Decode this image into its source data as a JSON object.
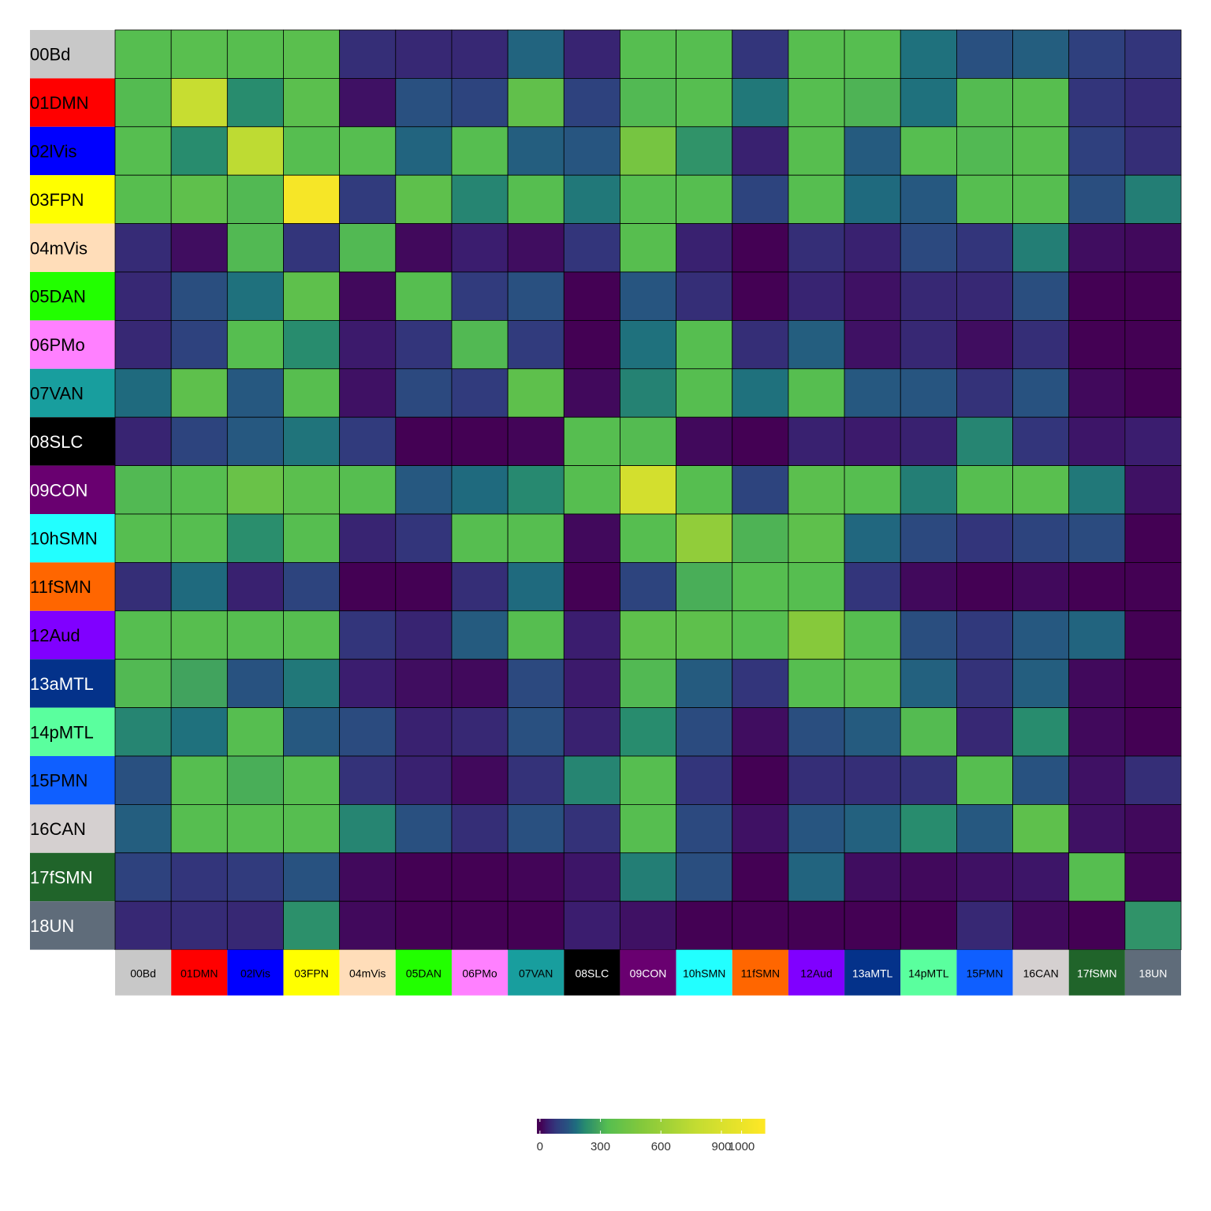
{
  "chart_data": {
    "type": "heatmap",
    "title": "",
    "xlabel": "",
    "ylabel": "",
    "row_labels": [
      "00Bd",
      "01DMN",
      "02lVis",
      "03FPN",
      "04mVis",
      "05DAN",
      "06PMo",
      "07VAN",
      "08SLC",
      "09CON",
      "10hSMN",
      "11fSMN",
      "12Aud",
      "13aMTL",
      "14pMTL",
      "15PMN",
      "16CAN",
      "17fSMN",
      "18UN"
    ],
    "col_labels": [
      "00Bd",
      "01DMN",
      "02lVis",
      "03FPN",
      "04mVis",
      "05DAN",
      "06PMo",
      "07VAN",
      "08SLC",
      "09CON",
      "10hSMN",
      "11fSMN",
      "12Aud",
      "13aMTL",
      "14pMTL",
      "15PMN",
      "16CAN",
      "17fSMN",
      "18UN"
    ],
    "label_colors": [
      "#C8C8C8",
      "#FF0000",
      "#0000FF",
      "#FFFF00",
      "#FFDDB9",
      "#22FF00",
      "#FF80FF",
      "#189E9E",
      "#000000",
      "#690070",
      "#22FFFF",
      "#FF6600",
      "#8000FF",
      "#04328A",
      "#5AFF9E",
      "#0F5FFF",
      "#D5D0D0",
      "#20642A",
      "#5F6C7A"
    ],
    "label_text_colors": [
      "#000000",
      "#000000",
      "#000000",
      "#000000",
      "#000000",
      "#000000",
      "#000000",
      "#000000",
      "#ffffff",
      "#ffffff",
      "#000000",
      "#000000",
      "#000000",
      "#ffffff",
      "#000000",
      "#000000",
      "#000000",
      "#ffffff",
      "#ffffff"
    ],
    "values": [
      [
        330,
        340,
        335,
        345,
        60,
        50,
        50,
        160,
        45,
        330,
        330,
        70,
        335,
        330,
        180,
        125,
        150,
        90,
        70
      ],
      [
        325,
        790,
        220,
        350,
        20,
        125,
        100,
        370,
        95,
        320,
        330,
        190,
        330,
        310,
        180,
        325,
        335,
        70,
        55
      ],
      [
        330,
        220,
        750,
        330,
        330,
        160,
        330,
        150,
        135,
        450,
        240,
        40,
        335,
        145,
        330,
        320,
        335,
        90,
        60
      ],
      [
        335,
        365,
        320,
        1060,
        80,
        360,
        210,
        330,
        190,
        330,
        330,
        100,
        330,
        170,
        140,
        330,
        330,
        120,
        200
      ],
      [
        55,
        15,
        320,
        70,
        320,
        10,
        35,
        15,
        70,
        335,
        40,
        0,
        60,
        40,
        110,
        70,
        200,
        15,
        10
      ],
      [
        50,
        120,
        180,
        360,
        10,
        330,
        80,
        125,
        0,
        135,
        60,
        0,
        45,
        20,
        50,
        50,
        120,
        0,
        0
      ],
      [
        50,
        95,
        330,
        220,
        30,
        70,
        320,
        80,
        0,
        180,
        330,
        60,
        150,
        20,
        50,
        15,
        60,
        0,
        0
      ],
      [
        170,
        360,
        140,
        335,
        20,
        110,
        80,
        360,
        10,
        205,
        330,
        180,
        330,
        140,
        135,
        65,
        130,
        10,
        0
      ],
      [
        45,
        100,
        140,
        185,
        80,
        0,
        0,
        5,
        330,
        325,
        10,
        0,
        40,
        30,
        40,
        210,
        70,
        25,
        35
      ],
      [
        320,
        330,
        400,
        350,
        330,
        140,
        170,
        215,
        330,
        860,
        330,
        100,
        350,
        330,
        200,
        330,
        340,
        190,
        20
      ],
      [
        330,
        330,
        225,
        330,
        45,
        70,
        330,
        330,
        10,
        330,
        560,
        310,
        360,
        165,
        110,
        70,
        100,
        115,
        0
      ],
      [
        60,
        170,
        40,
        100,
        0,
        0,
        60,
        170,
        0,
        100,
        300,
        330,
        330,
        70,
        10,
        0,
        10,
        0,
        0
      ],
      [
        330,
        335,
        330,
        330,
        70,
        45,
        145,
        330,
        35,
        360,
        360,
        330,
        510,
        330,
        120,
        75,
        140,
        160,
        0
      ],
      [
        320,
        280,
        130,
        190,
        35,
        15,
        10,
        110,
        30,
        320,
        145,
        70,
        330,
        340,
        155,
        65,
        150,
        10,
        0
      ],
      [
        210,
        180,
        330,
        140,
        115,
        40,
        50,
        125,
        40,
        220,
        115,
        15,
        120,
        145,
        325,
        50,
        220,
        10,
        0
      ],
      [
        125,
        330,
        300,
        330,
        65,
        40,
        10,
        65,
        210,
        330,
        70,
        0,
        60,
        60,
        65,
        330,
        130,
        20,
        60
      ],
      [
        150,
        330,
        330,
        330,
        210,
        125,
        60,
        125,
        65,
        330,
        110,
        20,
        135,
        155,
        220,
        140,
        360,
        20,
        10
      ],
      [
        95,
        70,
        80,
        130,
        10,
        0,
        0,
        5,
        25,
        200,
        120,
        0,
        160,
        15,
        10,
        20,
        25,
        330,
        5
      ],
      [
        50,
        55,
        50,
        230,
        10,
        0,
        0,
        0,
        35,
        20,
        0,
        0,
        0,
        0,
        0,
        50,
        10,
        0,
        240
      ]
    ],
    "scale": {
      "min": 0,
      "max": 1100
    },
    "legend": {
      "placement": "bottom",
      "ticks": [
        0,
        300,
        600,
        900,
        1000
      ],
      "tick_labels": [
        "0",
        "300",
        "600",
        "900",
        "1000"
      ]
    }
  }
}
